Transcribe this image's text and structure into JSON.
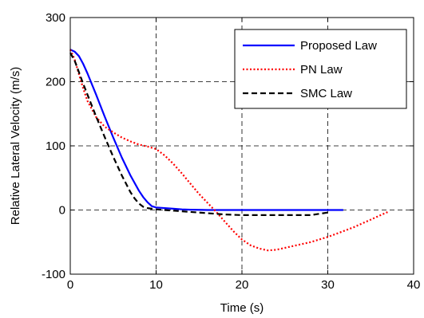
{
  "chart_data": {
    "type": "line",
    "title": "",
    "xlabel": "Time (s)",
    "ylabel": "Relative Lateral Velocity (m/s)",
    "xlim": [
      0,
      40
    ],
    "ylim": [
      -100,
      300
    ],
    "xticks": [
      0,
      10,
      20,
      30,
      40
    ],
    "yticks": [
      -100,
      0,
      100,
      200,
      300
    ],
    "xtick_labels": [
      "0",
      "10",
      "20",
      "30",
      "40"
    ],
    "ytick_labels": [
      "-100",
      "0",
      "100",
      "200",
      "300"
    ],
    "grid": true,
    "legend_position": "top-right",
    "series": [
      {
        "name": "Proposed Law",
        "color": "#0000ff",
        "dash": "solid",
        "x": [
          0,
          0.5,
          1,
          1.5,
          2,
          3,
          4,
          5,
          6,
          7,
          8,
          8.5,
          9,
          9.5,
          10,
          11,
          12,
          13,
          14,
          16,
          20,
          25,
          30,
          31.8
        ],
        "y": [
          250,
          247,
          240,
          228,
          213,
          180,
          146,
          113,
          82,
          54,
          30,
          20,
          12,
          6,
          4,
          3,
          2,
          1,
          0.5,
          0,
          0,
          0,
          0,
          0
        ]
      },
      {
        "name": "PN Law",
        "color": "#ff0000",
        "dash": "dotted",
        "x": [
          0,
          0.5,
          1,
          1.5,
          2,
          3,
          4,
          5,
          6,
          7,
          8,
          9,
          10,
          11,
          12,
          13,
          14,
          15,
          16,
          17,
          18,
          19,
          20,
          21,
          22,
          23,
          24,
          25,
          26,
          27,
          28,
          29,
          30,
          31,
          32,
          33,
          34,
          35,
          36,
          37
        ],
        "y": [
          250,
          235,
          212,
          190,
          170,
          145,
          130,
          121,
          113,
          107,
          102,
          99,
          95,
          85,
          72,
          57,
          41,
          25,
          11,
          -3,
          -18,
          -33,
          -46,
          -55,
          -60,
          -63,
          -62,
          -59,
          -56,
          -53,
          -50,
          -46,
          -42,
          -37,
          -32,
          -27,
          -21,
          -15,
          -9,
          -3
        ]
      },
      {
        "name": "SMC Law",
        "color": "#000000",
        "dash": "dashed",
        "x": [
          0,
          0.5,
          1,
          1.5,
          2,
          3,
          4,
          5,
          6,
          7,
          7.5,
          8,
          8.5,
          9,
          9.5,
          10,
          11,
          12,
          13,
          14,
          15,
          16,
          17,
          18,
          20,
          22,
          24,
          26,
          28,
          29,
          30
        ],
        "y": [
          245,
          233,
          215,
          197,
          180,
          146,
          114,
          83,
          54,
          28,
          18,
          10,
          5,
          3,
          2,
          1,
          0,
          -1,
          -2,
          -3,
          -4,
          -5,
          -6,
          -7,
          -8,
          -8,
          -8,
          -8,
          -8,
          -6,
          -4
        ]
      }
    ]
  }
}
